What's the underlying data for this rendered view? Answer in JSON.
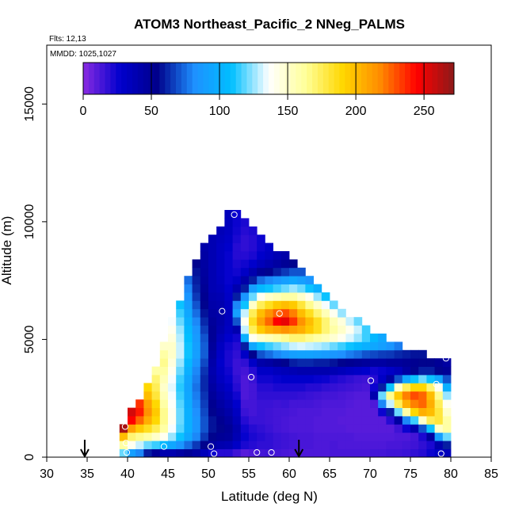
{
  "chart_data": {
    "type": "heatmap",
    "title": "ATOM3 Northeast_Pacific_2 NNeg_PALMS",
    "flights_label": "Flts: 12,13",
    "dates_label": "MMDD: 1025,1027",
    "xlabel": "Latitude (deg N)",
    "ylabel": "Altitude (m)",
    "xlim": [
      30,
      85
    ],
    "ylim": [
      0,
      17500
    ],
    "x_ticks": [
      "30",
      "35",
      "40",
      "45",
      "50",
      "55",
      "60",
      "65",
      "70",
      "75",
      "80",
      "85"
    ],
    "y_ticks": [
      "0",
      "5000",
      "10000",
      "15000"
    ],
    "colorbar": {
      "range": [
        0,
        272
      ],
      "ticks": [
        "0",
        "50",
        "100",
        "150",
        "200",
        "250"
      ],
      "colors": [
        "#8a2be2",
        "#0000cd",
        "#00008b",
        "#1e90ff",
        "#00bfff",
        "#ffffff",
        "#ffff99",
        "#ffd700",
        "#ff8c00",
        "#ff0000",
        "#8b1a1a"
      ]
    },
    "bin_size": {
      "lat": 1,
      "alt_m": 350
    },
    "grid_cells_by_latitude": [
      {
        "lat": 39,
        "alt_bins": [
          0,
          4
        ],
        "values": [
          120,
          160,
          200,
          265
        ]
      },
      {
        "lat": 40,
        "alt_bins": [
          0,
          6
        ],
        "values": [
          90,
          140,
          170,
          210,
          245,
          255
        ]
      },
      {
        "lat": 41,
        "alt_bins": [
          0,
          7
        ],
        "values": [
          80,
          130,
          165,
          195,
          225,
          240,
          235
        ]
      },
      {
        "lat": 42,
        "alt_bins": [
          0,
          9
        ],
        "values": [
          60,
          120,
          160,
          185,
          205,
          215,
          210,
          200,
          190
        ]
      },
      {
        "lat": 43,
        "alt_bins": [
          0,
          11
        ],
        "values": [
          50,
          115,
          150,
          175,
          190,
          195,
          190,
          180,
          175,
          170,
          160
        ]
      },
      {
        "lat": 44,
        "alt_bins": [
          0,
          14
        ],
        "values": [
          40,
          105,
          140,
          160,
          165,
          165,
          160,
          155,
          150,
          155,
          160,
          165,
          160,
          150
        ]
      },
      {
        "lat": 45,
        "alt_bins": [
          0,
          17
        ],
        "values": [
          40,
          95,
          125,
          135,
          140,
          140,
          138,
          135,
          133,
          135,
          140,
          145,
          150,
          150,
          145,
          140,
          135
        ]
      },
      {
        "lat": 46,
        "alt_bins": [
          0,
          19
        ],
        "values": [
          45,
          85,
          110,
          118,
          120,
          120,
          118,
          115,
          113,
          115,
          120,
          125,
          130,
          130,
          128,
          125,
          120,
          115,
          110
        ]
      },
      {
        "lat": 47,
        "alt_bins": [
          0,
          22
        ],
        "values": [
          50,
          75,
          95,
          100,
          100,
          100,
          98,
          95,
          93,
          95,
          100,
          105,
          110,
          110,
          108,
          105,
          100,
          95,
          90,
          85,
          80,
          75
        ]
      },
      {
        "lat": 48,
        "alt_bins": [
          0,
          24
        ],
        "values": [
          45,
          65,
          80,
          85,
          85,
          82,
          80,
          78,
          76,
          78,
          80,
          85,
          90,
          90,
          88,
          85,
          80,
          75,
          70,
          65,
          62,
          60,
          58,
          55
        ]
      },
      {
        "lat": 49,
        "alt_bins": [
          0,
          26
        ],
        "values": [
          35,
          55,
          65,
          70,
          70,
          68,
          66,
          64,
          62,
          62,
          64,
          68,
          72,
          72,
          70,
          66,
          62,
          58,
          55,
          52,
          50,
          48,
          46,
          45,
          44,
          42
        ]
      },
      {
        "lat": 50,
        "alt_bins": [
          0,
          27
        ],
        "values": [
          25,
          45,
          55,
          58,
          58,
          55,
          52,
          48,
          45,
          42,
          40,
          42,
          45,
          48,
          50,
          50,
          48,
          45,
          42,
          40,
          38,
          38,
          38,
          38,
          38,
          38,
          38
        ]
      },
      {
        "lat": 51,
        "alt_bins": [
          0,
          28
        ],
        "values": [
          20,
          40,
          50,
          55,
          52,
          48,
          44,
          40,
          36,
          32,
          30,
          28,
          30,
          32,
          36,
          40,
          42,
          42,
          40,
          38,
          35,
          33,
          32,
          32,
          32,
          32,
          34,
          36
        ]
      },
      {
        "lat": 52,
        "alt_bins": [
          0,
          30
        ],
        "values": [
          20,
          38,
          48,
          50,
          46,
          42,
          38,
          34,
          30,
          26,
          24,
          22,
          22,
          24,
          28,
          32,
          34,
          34,
          32,
          30,
          28,
          26,
          26,
          26,
          26,
          28,
          30,
          32,
          34,
          35
        ]
      },
      {
        "lat": 53,
        "alt_bins": [
          0,
          30
        ],
        "values": [
          15,
          30,
          38,
          40,
          36,
          32,
          28,
          24,
          20,
          18,
          16,
          16,
          18,
          20,
          24,
          40,
          70,
          90,
          80,
          60,
          40,
          30,
          24,
          22,
          20,
          20,
          22,
          24,
          25,
          25
        ]
      },
      {
        "lat": 54,
        "alt_bins": [
          0,
          29
        ],
        "values": [
          10,
          22,
          26,
          24,
          20,
          16,
          14,
          12,
          12,
          12,
          14,
          18,
          30,
          60,
          100,
          130,
          140,
          130,
          110,
          85,
          60,
          42,
          30,
          24,
          20,
          18,
          18,
          20,
          22
        ]
      },
      {
        "lat": 55,
        "alt_bins": [
          0,
          28
        ],
        "values": [
          12,
          20,
          22,
          20,
          16,
          14,
          14,
          14,
          14,
          16,
          20,
          30,
          55,
          95,
          140,
          175,
          185,
          175,
          150,
          120,
          90,
          60,
          40,
          28,
          22,
          20,
          20,
          22
        ]
      },
      {
        "lat": 56,
        "alt_bins": [
          0,
          27
        ],
        "values": [
          14,
          18,
          20,
          18,
          16,
          16,
          16,
          18,
          20,
          24,
          30,
          42,
          70,
          110,
          150,
          195,
          210,
          200,
          175,
          140,
          105,
          75,
          50,
          35,
          28,
          25,
          25
        ]
      },
      {
        "lat": 57,
        "alt_bins": [
          0,
          26
        ],
        "values": [
          15,
          18,
          18,
          16,
          15,
          15,
          16,
          18,
          20,
          24,
          30,
          45,
          75,
          115,
          155,
          205,
          225,
          215,
          185,
          150,
          110,
          80,
          55,
          40,
          32,
          30
        ]
      },
      {
        "lat": 58,
        "alt_bins": [
          0,
          25
        ],
        "values": [
          14,
          16,
          16,
          14,
          14,
          14,
          15,
          18,
          22,
          26,
          34,
          50,
          80,
          120,
          160,
          210,
          245,
          225,
          195,
          155,
          115,
          85,
          60,
          45,
          38
        ]
      },
      {
        "lat": 59,
        "alt_bins": [
          0,
          25
        ],
        "values": [
          13,
          15,
          15,
          13,
          13,
          14,
          16,
          18,
          22,
          28,
          36,
          55,
          85,
          125,
          165,
          215,
          250,
          230,
          200,
          160,
          120,
          90,
          65,
          50,
          42
        ]
      },
      {
        "lat": 60,
        "alt_bins": [
          0,
          24
        ],
        "values": [
          12,
          14,
          14,
          12,
          12,
          13,
          14,
          18,
          22,
          28,
          38,
          60,
          90,
          130,
          170,
          210,
          235,
          220,
          195,
          160,
          125,
          95,
          70,
          55
        ]
      },
      {
        "lat": 61,
        "alt_bins": [
          0,
          23
        ],
        "values": [
          12,
          13,
          13,
          12,
          12,
          12,
          14,
          17,
          22,
          28,
          40,
          62,
          92,
          132,
          170,
          205,
          215,
          200,
          180,
          150,
          120,
          90,
          70
        ]
      },
      {
        "lat": 62,
        "alt_bins": [
          0,
          22
        ],
        "values": [
          12,
          13,
          13,
          12,
          12,
          12,
          14,
          16,
          20,
          28,
          40,
          62,
          92,
          130,
          165,
          195,
          200,
          185,
          165,
          140,
          110,
          85
        ]
      },
      {
        "lat": 63,
        "alt_bins": [
          0,
          21
        ],
        "values": [
          12,
          12,
          12,
          11,
          11,
          12,
          13,
          15,
          20,
          26,
          40,
          60,
          90,
          128,
          160,
          185,
          185,
          170,
          150,
          125,
          100
        ]
      },
      {
        "lat": 64,
        "alt_bins": [
          0,
          20
        ],
        "values": [
          12,
          12,
          12,
          11,
          11,
          11,
          12,
          14,
          18,
          25,
          40,
          60,
          88,
          125,
          155,
          170,
          170,
          155,
          135,
          110
        ]
      },
      {
        "lat": 65,
        "alt_bins": [
          0,
          19
        ],
        "values": [
          13,
          13,
          12,
          11,
          11,
          11,
          12,
          14,
          17,
          22,
          38,
          58,
          85,
          120,
          148,
          160,
          155,
          140,
          120
        ]
      },
      {
        "lat": 66,
        "alt_bins": [
          0,
          18
        ],
        "values": [
          13,
          12,
          12,
          11,
          10,
          11,
          12,
          13,
          16,
          20,
          35,
          55,
          82,
          115,
          140,
          150,
          145,
          125
        ]
      },
      {
        "lat": 67,
        "alt_bins": [
          0,
          17
        ],
        "values": [
          13,
          12,
          12,
          10,
          10,
          10,
          11,
          12,
          15,
          18,
          32,
          52,
          78,
          110,
          132,
          140,
          130
        ]
      },
      {
        "lat": 68,
        "alt_bins": [
          0,
          17
        ],
        "values": [
          13,
          12,
          11,
          10,
          10,
          10,
          10,
          11,
          14,
          16,
          30,
          50,
          75,
          105,
          125,
          130,
          120
        ]
      },
      {
        "lat": 69,
        "alt_bins": [
          0,
          16
        ],
        "values": [
          13,
          12,
          11,
          10,
          10,
          10,
          10,
          11,
          13,
          15,
          28,
          48,
          70,
          100,
          115,
          115
        ]
      },
      {
        "lat": 70,
        "alt_bins": [
          0,
          15
        ],
        "values": [
          14,
          12,
          11,
          10,
          10,
          10,
          12,
          40,
          25,
          20,
          24,
          45,
          68,
          95,
          105
        ]
      },
      {
        "lat": 71,
        "alt_bins": [
          0,
          15
        ],
        "values": [
          14,
          12,
          11,
          10,
          10,
          25,
          80,
          120,
          60,
          30,
          26,
          45,
          66,
          90,
          95
        ]
      },
      {
        "lat": 72,
        "alt_bins": [
          0,
          14
        ],
        "values": [
          15,
          13,
          11,
          10,
          20,
          60,
          130,
          165,
          110,
          45,
          30,
          48,
          65,
          85
        ]
      },
      {
        "lat": 73,
        "alt_bins": [
          0,
          14
        ],
        "values": [
          15,
          13,
          12,
          15,
          45,
          120,
          175,
          195,
          150,
          70,
          35,
          48,
          62,
          78
        ]
      },
      {
        "lat": 74,
        "alt_bins": [
          0,
          13
        ],
        "values": [
          16,
          14,
          12,
          25,
          80,
          160,
          205,
          220,
          175,
          95,
          45,
          50,
          60
        ]
      },
      {
        "lat": 75,
        "alt_bins": [
          0,
          13
        ],
        "values": [
          18,
          15,
          14,
          40,
          115,
          190,
          220,
          230,
          190,
          110,
          55,
          52,
          58
        ]
      },
      {
        "lat": 76,
        "alt_bins": [
          0,
          13
        ],
        "values": [
          20,
          18,
          22,
          70,
          150,
          205,
          225,
          225,
          190,
          120,
          60,
          55,
          58
        ]
      },
      {
        "lat": 77,
        "alt_bins": [
          0,
          12
        ],
        "values": [
          25,
          22,
          45,
          110,
          175,
          200,
          205,
          200,
          170,
          110,
          60,
          55
        ]
      },
      {
        "lat": 78,
        "alt_bins": [
          0,
          12
        ],
        "values": [
          30,
          40,
          90,
          150,
          180,
          180,
          175,
          165,
          140,
          95,
          55,
          50
        ]
      },
      {
        "lat": 79,
        "alt_bins": [
          0,
          12
        ],
        "values": [
          35,
          60,
          120,
          160,
          160,
          150,
          140,
          125,
          100,
          70,
          50,
          45
        ]
      }
    ],
    "markers": [
      {
        "lat": 39.9,
        "alt": 200
      },
      {
        "lat": 39.8,
        "alt": 600
      },
      {
        "lat": 39.7,
        "alt": 1300
      },
      {
        "lat": 44.5,
        "alt": 450
      },
      {
        "lat": 50.3,
        "alt": 450
      },
      {
        "lat": 50.7,
        "alt": 150
      },
      {
        "lat": 51.7,
        "alt": 6200
      },
      {
        "lat": 53.2,
        "alt": 10300
      },
      {
        "lat": 55.3,
        "alt": 3400
      },
      {
        "lat": 56.0,
        "alt": 200
      },
      {
        "lat": 57.8,
        "alt": 200
      },
      {
        "lat": 58.8,
        "alt": 6100
      },
      {
        "lat": 70.1,
        "alt": 3250
      },
      {
        "lat": 78.2,
        "alt": 3100
      },
      {
        "lat": 78.8,
        "alt": 150
      },
      {
        "lat": 79.4,
        "alt": 4200
      }
    ],
    "arrows": [
      {
        "lat": 34.7
      },
      {
        "lat": 61.2
      }
    ]
  }
}
